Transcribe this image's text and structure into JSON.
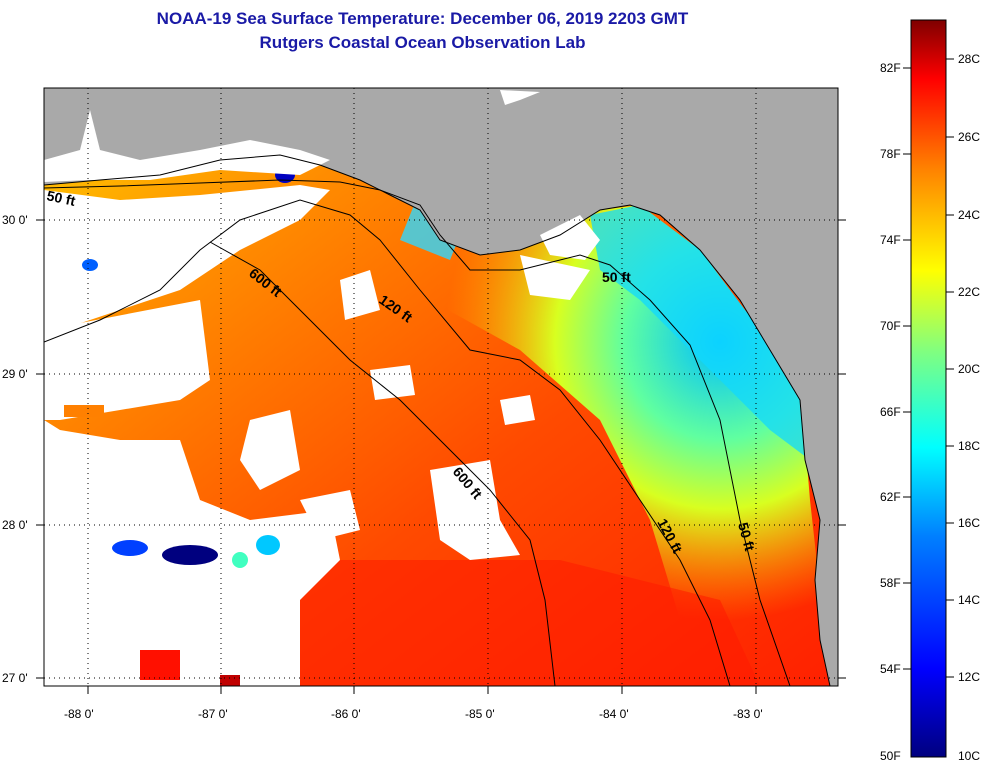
{
  "title": {
    "line1": "NOAA-19 Sea Surface Temperature:  December 06, 2019 2203 GMT",
    "line2": "Rutgers Coastal Ocean Observation Lab"
  },
  "map": {
    "region": "Eastern Gulf of Mexico / Florida Big Bend",
    "lon_range": [
      -88.35,
      -82.4
    ],
    "lat_range": [
      26.98,
      30.88
    ],
    "lon_ticks": [
      {
        "value": -88,
        "label": "-88 0'"
      },
      {
        "value": -87,
        "label": "-87 0'"
      },
      {
        "value": -86,
        "label": "-86 0'"
      },
      {
        "value": -85,
        "label": "-85 0'"
      },
      {
        "value": -84,
        "label": "-84 0'"
      },
      {
        "value": -83,
        "label": "-83 0'"
      }
    ],
    "lat_ticks": [
      {
        "value": 30,
        "label": "30 0'"
      },
      {
        "value": 29,
        "label": "29 0'"
      },
      {
        "value": 28,
        "label": "28 0'"
      },
      {
        "value": 27,
        "label": "27 0'"
      }
    ],
    "contour_labels": [
      "50 ft",
      "600 ft",
      "120 ft",
      "50 ft",
      "600 ft",
      "120 ft",
      "50 ft"
    ],
    "colors": {
      "land": "#a9a9a9",
      "cloud_mask": "#ffffff",
      "grid": "#000000"
    }
  },
  "colorbar": {
    "celsius_labels": [
      "28C",
      "26C",
      "24C",
      "22C",
      "20C",
      "18C",
      "16C",
      "14C",
      "12C",
      "10C"
    ],
    "fahrenheit_labels": [
      "82F",
      "78F",
      "74F",
      "70F",
      "66F",
      "62F",
      "58F",
      "54F",
      "50F"
    ],
    "range_c": [
      10,
      29
    ],
    "stops": [
      "#00007f",
      "#0000ff",
      "#0080ff",
      "#00ffff",
      "#80ff80",
      "#ffff00",
      "#ff8000",
      "#ff0000",
      "#7f0000"
    ]
  }
}
